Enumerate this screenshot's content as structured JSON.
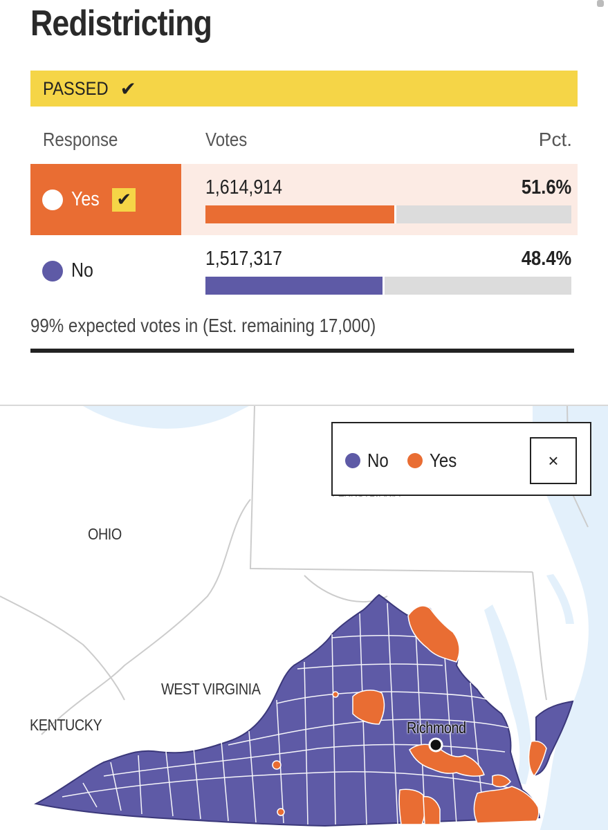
{
  "page": {
    "title": "Redistricting"
  },
  "status": {
    "label": "PASSED",
    "check_icon": "checkmark-icon",
    "color": "#f5d547"
  },
  "table": {
    "headers": {
      "response": "Response",
      "votes": "Votes",
      "pct": "Pct."
    },
    "rows": [
      {
        "response": "Yes",
        "votes": "1,614,914",
        "pct": "51.6%",
        "share": 0.516,
        "winner": true,
        "color": "#e96d33",
        "row_bg": "#fcebe4"
      },
      {
        "response": "No",
        "votes": "1,517,317",
        "pct": "48.4%",
        "share": 0.484,
        "winner": false,
        "color": "#5e5aa6",
        "row_bg": "#ffffff"
      }
    ]
  },
  "reporting": {
    "text": "99% expected votes in (Est. remaining 17,000)"
  },
  "map": {
    "legend": [
      {
        "label": "No",
        "color": "#5e5aa6"
      },
      {
        "label": "Yes",
        "color": "#e96d33"
      }
    ],
    "close_label": "×",
    "labels": {
      "ohio": "OHIO",
      "west_virginia": "WEST VIRGINIA",
      "kentucky": "KENTUCKY",
      "pennsylvania": "PENNSYLVANIA",
      "richmond": "Richmond"
    }
  }
}
